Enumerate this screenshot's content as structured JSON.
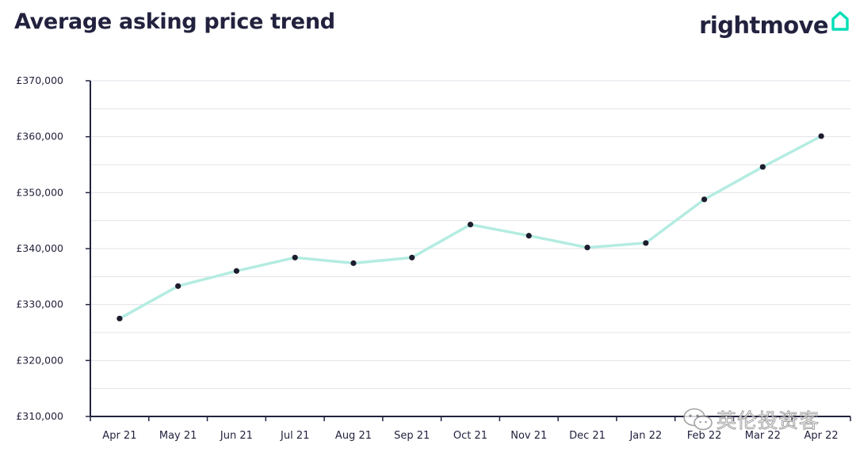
{
  "header": {
    "title": "Average asking price trend"
  },
  "logo": {
    "text": "rightmove",
    "icon": "house-outline-icon",
    "accent_color": "#00deb6"
  },
  "watermark": {
    "text": "英伦投资客",
    "icon": "wechat-icon"
  },
  "chart_data": {
    "type": "line",
    "title": "Average asking price trend",
    "xlabel": "",
    "ylabel": "",
    "categories": [
      "Apr 21",
      "May 21",
      "Jun 21",
      "Jul 21",
      "Aug 21",
      "Sep 21",
      "Oct 21",
      "Nov 21",
      "Dec 21",
      "Jan 22",
      "Feb 22",
      "Mar 22",
      "Apr 22"
    ],
    "series": [
      {
        "values": [
          327500,
          333300,
          336000,
          338400,
          337400,
          338400,
          344300,
          342300,
          340200,
          341000,
          348800,
          354600,
          360100
        ]
      }
    ],
    "ylim": [
      310000,
      370000
    ],
    "yticks": [
      310000,
      320000,
      330000,
      340000,
      350000,
      360000,
      370000
    ],
    "ytick_labels": [
      "£310,000",
      "£320,000",
      "£330,000",
      "£340,000",
      "£350,000",
      "£360,000",
      "£370,000"
    ],
    "grid": true,
    "legend": "none",
    "colors": {
      "line": "#b4ece1",
      "marker": "#1d1d2e",
      "axis": "#22223f",
      "grid": "#e3e3e8",
      "text": "#22223f"
    }
  }
}
